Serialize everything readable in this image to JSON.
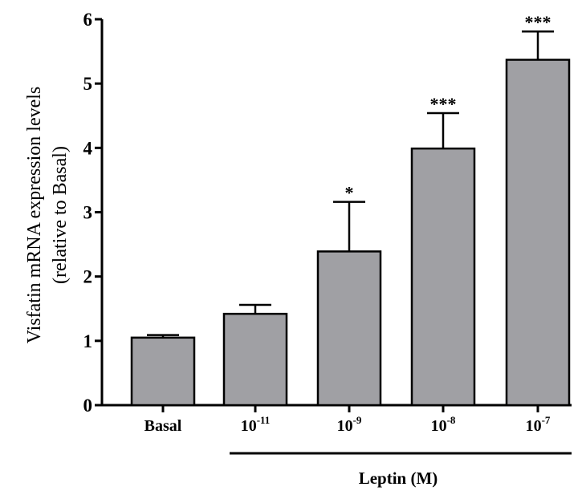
{
  "chart_data": {
    "type": "bar",
    "categories": [
      {
        "base": "Basal",
        "exp": ""
      },
      {
        "base": "10",
        "exp": "-11"
      },
      {
        "base": "10",
        "exp": "-9"
      },
      {
        "base": "10",
        "exp": "-8"
      },
      {
        "base": "10",
        "exp": "-7"
      }
    ],
    "values": [
      1.05,
      1.42,
      2.39,
      3.99,
      5.37
    ],
    "errors": [
      0.04,
      0.14,
      0.77,
      0.55,
      0.44
    ],
    "significance": [
      "",
      "",
      "*",
      "***",
      "***"
    ],
    "ylabel_line1": "Visfatin mRNA expression levels",
    "ylabel_line2": "(relative to Basal)",
    "ylim": [
      0,
      6
    ],
    "yticks": [
      0,
      1,
      2,
      3,
      4,
      5,
      6
    ],
    "group_label": "Leptin (M)",
    "bar_color": "#a0a0a4",
    "edge_color": "#000000",
    "grid": false
  }
}
